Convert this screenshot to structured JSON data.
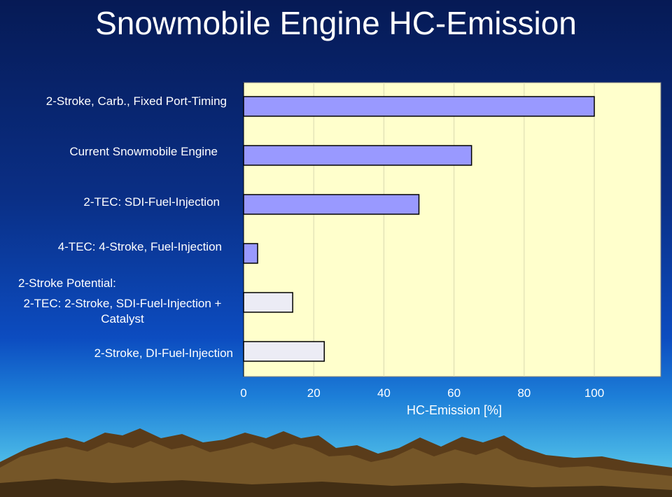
{
  "title": "Snowmobile Engine HC-Emission",
  "chart_data": {
    "type": "bar",
    "orientation": "horizontal",
    "categories": [
      "2-Stroke, Carb., Fixed Port-Timing",
      "Current Snowmobile Engine",
      "2-TEC:  SDI-Fuel-Injection",
      "4-TEC: 4-Stroke, Fuel-Injection",
      "2-TEC: 2-Stroke, SDI-Fuel-Injection + Catalyst",
      "2-Stroke, DI-Fuel-Injection"
    ],
    "values": [
      100,
      65,
      50,
      4,
      14,
      23
    ],
    "group_label": "2-Stroke Potential:",
    "xlabel": "HC-Emission  [%]",
    "xlim": [
      0,
      100
    ],
    "xticks": [
      "0",
      "20",
      "40",
      "60",
      "80",
      "100"
    ],
    "grid": true,
    "plot_background": "#ffffcc",
    "bar_colors": [
      "#9999ff",
      "#9999ff",
      "#9999ff",
      "#9999ff",
      "#ececf5",
      "#ececf5"
    ]
  }
}
